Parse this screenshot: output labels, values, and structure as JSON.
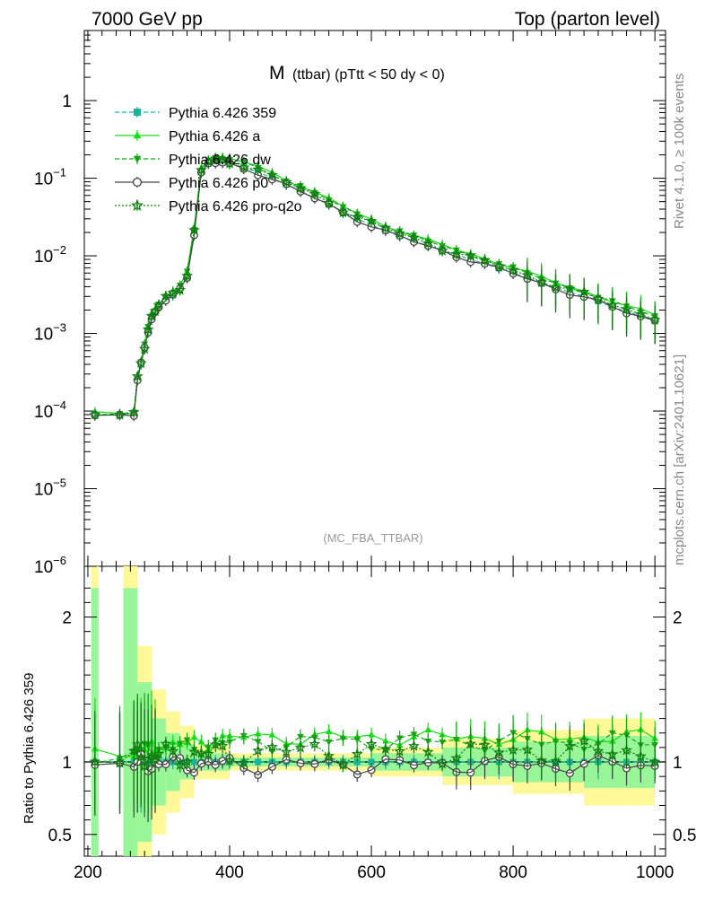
{
  "header": {
    "left_label": "7000 GeV pp",
    "right_label": "Top (parton level)"
  },
  "side_labels": {
    "rivet": "Rivet 4.1.0, ≥ 100k events",
    "mcplots": "mcplots.cern.ch [arXiv:2401.10621]"
  },
  "chart_data": {
    "type": "line",
    "title_main": "M",
    "title_sub": "(ttbar) (pTtt < 50 dy < 0)",
    "watermark": "(MC_FBA_TTBAR)",
    "xlabel": "",
    "xlim": [
      195,
      1015
    ],
    "x_ticks": [
      "200",
      "400",
      "600",
      "800",
      "1000"
    ],
    "top_panel": {
      "yscale": "log",
      "ylim": [
        1e-06,
        8
      ],
      "y_ticks": [
        {
          "value": 1,
          "label": "1"
        },
        {
          "value": 0.1,
          "label": "10",
          "exp": "−1"
        },
        {
          "value": 0.01,
          "label": "10",
          "exp": "−2"
        },
        {
          "value": 0.001,
          "label": "10",
          "exp": "−3"
        },
        {
          "value": 0.0001,
          "label": "10",
          "exp": "−4"
        },
        {
          "value": 1e-05,
          "label": "10",
          "exp": "−5"
        },
        {
          "value": 1e-06,
          "label": "10",
          "exp": "−6"
        }
      ]
    },
    "ratio_panel": {
      "ylabel": "Ratio to Pythia 6.426 359",
      "ylim": [
        0.35,
        2.35
      ],
      "y_ticks": [
        {
          "value": 2,
          "label": "2"
        },
        {
          "value": 1,
          "label": "1"
        },
        {
          "value": 0.5,
          "label": "0.5"
        }
      ]
    },
    "reference_curve": {
      "x": [
        210,
        245,
        265,
        270,
        275,
        280,
        285,
        290,
        295,
        300,
        310,
        320,
        330,
        340,
        350,
        360,
        370,
        380,
        390,
        400,
        420,
        440,
        460,
        480,
        500,
        520,
        540,
        560,
        580,
        600,
        620,
        640,
        660,
        680,
        700,
        720,
        740,
        760,
        780,
        800,
        820,
        840,
        860,
        880,
        900,
        920,
        940,
        960,
        980,
        1000
      ],
      "y": [
        9e-05,
        9e-05,
        9e-05,
        0.00025,
        0.0004,
        0.00065,
        0.0011,
        0.0016,
        0.0019,
        0.0022,
        0.0027,
        0.0031,
        0.0037,
        0.0055,
        0.02,
        0.12,
        0.155,
        0.16,
        0.158,
        0.153,
        0.138,
        0.12,
        0.1,
        0.083,
        0.068,
        0.056,
        0.046,
        0.037,
        0.03,
        0.025,
        0.021,
        0.018,
        0.0155,
        0.0135,
        0.0118,
        0.0103,
        0.009,
        0.0079,
        0.0069,
        0.006,
        0.0052,
        0.0045,
        0.0039,
        0.0034,
        0.003,
        0.0026,
        0.0022,
        0.0019,
        0.0017,
        0.0015
      ]
    },
    "series": [
      {
        "name": "Pythia 6.426 359",
        "color": "#1bb39a",
        "marker": "square",
        "dash": "dashed",
        "ratio_offset": 0.0,
        "ratio_amp": 0.0,
        "ratio_phase": 0
      },
      {
        "name": "Pythia 6.426 a",
        "color": "#11e011",
        "marker": "triangle-up",
        "dash": "solid",
        "ratio_offset": 0.17,
        "ratio_amp": 0.06,
        "ratio_phase": 1
      },
      {
        "name": "Pythia 6.426 dw",
        "color": "#14a514",
        "marker": "triangle-down",
        "dash": "dashed",
        "ratio_offset": 0.14,
        "ratio_amp": 0.07,
        "ratio_phase": 2
      },
      {
        "name": "Pythia 6.426 p0",
        "color": "#444444",
        "marker": "circle-open",
        "dash": "solid",
        "ratio_offset": -0.02,
        "ratio_amp": 0.07,
        "ratio_phase": 3
      },
      {
        "name": "Pythia 6.426 pro-q2o",
        "color": "#0f800f",
        "marker": "star-open",
        "dash": "dotted",
        "ratio_offset": 0.07,
        "ratio_amp": 0.09,
        "ratio_phase": 4
      }
    ],
    "uncertainty_bands": {
      "x_edges": [
        205,
        215,
        250,
        270,
        290,
        310,
        330,
        350,
        400,
        500,
        600,
        700,
        800,
        900,
        1000
      ],
      "yellow_half_width": [
        1.5,
        0.0,
        1.5,
        0.8,
        0.5,
        0.35,
        0.25,
        0.12,
        0.06,
        0.06,
        0.1,
        0.16,
        0.22,
        0.3
      ],
      "green_half_width": [
        1.2,
        0.0,
        1.2,
        0.55,
        0.3,
        0.2,
        0.12,
        0.06,
        0.03,
        0.03,
        0.06,
        0.1,
        0.14,
        0.18
      ]
    }
  }
}
